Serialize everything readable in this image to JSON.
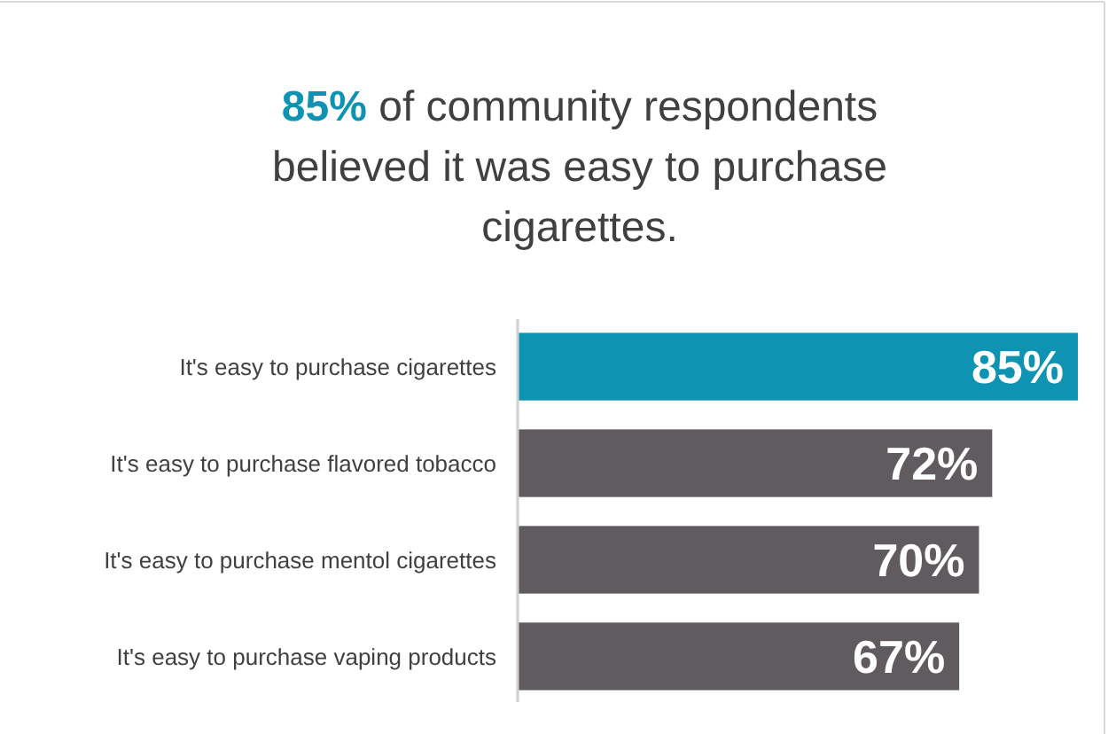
{
  "chart_data": {
    "type": "bar",
    "orientation": "horizontal",
    "title": "85% of community respondents believed it was easy to purchase cigarettes.",
    "categories": [
      "It's easy to purchase cigarettes",
      "It's easy to purchase flavored tobacco",
      "It's easy to purchase mentol cigarettes",
      "It's easy to purchase vaping products"
    ],
    "values": [
      85,
      72,
      70,
      67
    ],
    "colors": [
      "#0f93b3",
      "#605b5f",
      "#605b5f",
      "#605b5f"
    ],
    "value_labels": [
      "85%",
      "72%",
      "70%",
      "67%"
    ]
  }
}
